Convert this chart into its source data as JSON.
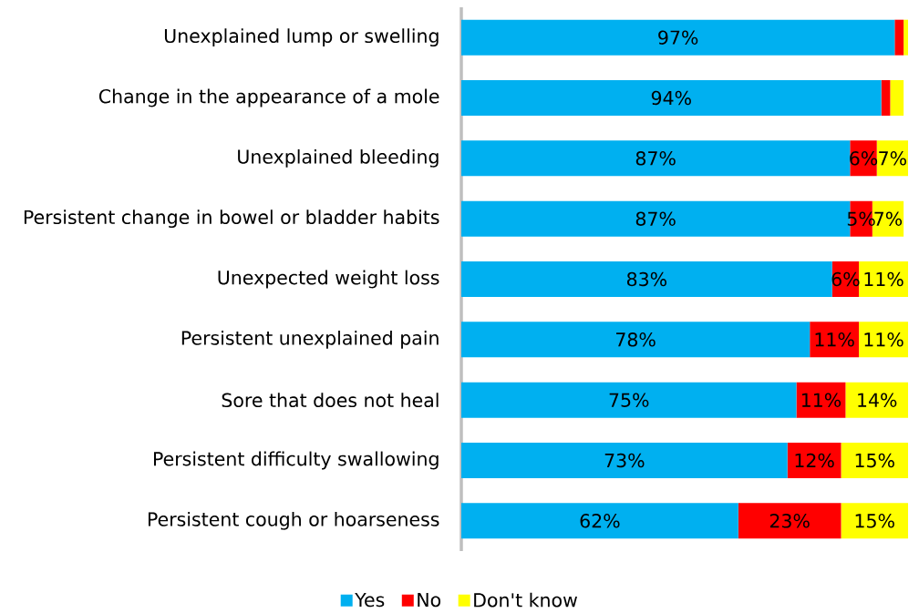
{
  "chart_data": {
    "type": "bar",
    "orientation": "horizontal",
    "stacked": true,
    "legend": "bottom",
    "categories": [
      "Unexplained lump or swelling",
      "Change in the appearance of a mole",
      "Unexplained bleeding",
      "Persistent change in bowel or bladder habits",
      "Unexpected weight loss",
      "Persistent unexplained pain",
      "Sore that does not heal",
      "Persistent difficulty swallowing",
      "Persistent cough or hoarseness"
    ],
    "series": [
      {
        "name": "Yes",
        "color": "#00b0f0",
        "values": [
          97,
          94,
          87,
          87,
          83,
          78,
          75,
          73,
          62
        ],
        "value_labels": [
          "97%",
          "94%",
          "87%",
          "87%",
          "83%",
          "78%",
          "75%",
          "73%",
          "62%"
        ]
      },
      {
        "name": "No",
        "color": "#ff0000",
        "values": [
          2,
          2,
          6,
          5,
          6,
          11,
          11,
          12,
          23
        ],
        "value_labels": [
          null,
          null,
          "6%",
          "5%",
          "6%",
          "11%",
          "11%",
          "12%",
          "23%"
        ]
      },
      {
        "name": "Don't know",
        "color": "#ffff00",
        "values": [
          1,
          3,
          7,
          7,
          11,
          11,
          14,
          15,
          15
        ],
        "value_labels": [
          null,
          null,
          "7%",
          "7%",
          "11%",
          "11%",
          "14%",
          "15%",
          "15%"
        ]
      }
    ]
  }
}
